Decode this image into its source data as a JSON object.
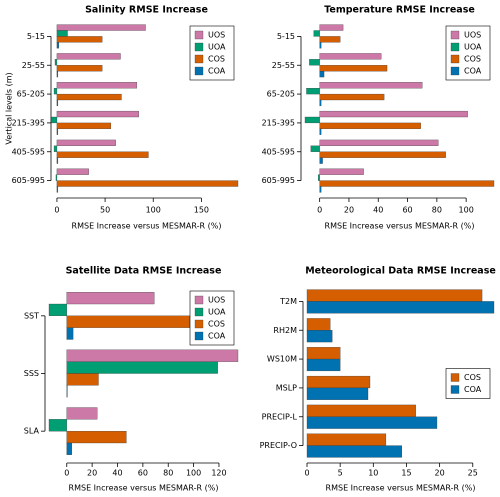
{
  "chart_data": [
    {
      "type": "bar",
      "orientation": "horizontal",
      "title": "Salinity RMSE Increase",
      "xlabel": "RMSE Increase versus MESMAR-R (%)",
      "ylabel": "Vertical levels (m)",
      "categories": [
        "5-15",
        "25-55",
        "65-205",
        "215-395",
        "405-595",
        "605-995"
      ],
      "series": [
        {
          "name": "UOS",
          "color": "#cc79a7",
          "values": [
            92,
            66,
            83,
            85,
            61,
            33
          ]
        },
        {
          "name": "UOA",
          "color": "#009e73",
          "values": [
            11,
            -2,
            -3,
            -6,
            -3,
            -1
          ]
        },
        {
          "name": "COS",
          "color": "#d55e00",
          "values": [
            47,
            47,
            67,
            56,
            95,
            188
          ]
        },
        {
          "name": "COA",
          "color": "#0072b2",
          "values": [
            2,
            1,
            1,
            1,
            1,
            1
          ]
        }
      ],
      "xlim": [
        -2,
        188
      ],
      "xticks": [
        0,
        50,
        100,
        150
      ],
      "legend": "upper right"
    },
    {
      "type": "bar",
      "orientation": "horizontal",
      "title": "Temperature RMSE Increase",
      "xlabel": "RMSE Increase versus MESMAR-R (%)",
      "categories": [
        "5-15",
        "25-55",
        "65-205",
        "215-395",
        "405-595",
        "605-995"
      ],
      "series": [
        {
          "name": "UOS",
          "color": "#cc79a7",
          "values": [
            16,
            42,
            70,
            101,
            81,
            30
          ]
        },
        {
          "name": "UOA",
          "color": "#009e73",
          "values": [
            -4,
            -7,
            -9,
            -10,
            -6,
            -1
          ]
        },
        {
          "name": "COS",
          "color": "#d55e00",
          "values": [
            14,
            46,
            44,
            69,
            86,
            119
          ]
        },
        {
          "name": "COA",
          "color": "#0072b2",
          "values": [
            1,
            3,
            1,
            1,
            2,
            1
          ]
        }
      ],
      "xlim": [
        -10,
        119
      ],
      "xticks": [
        0,
        20,
        40,
        60,
        80,
        100
      ],
      "legend": "upper right"
    },
    {
      "type": "bar",
      "orientation": "horizontal",
      "title": "Satellite Data RMSE Increase",
      "xlabel": "RMSE Increase versus MESMAR-R (%)",
      "categories": [
        "SST",
        "SSS",
        "SLA"
      ],
      "series": [
        {
          "name": "UOS",
          "color": "#cc79a7",
          "values": [
            69,
            135,
            24
          ]
        },
        {
          "name": "UOA",
          "color": "#009e73",
          "values": [
            -14,
            119,
            -14
          ]
        },
        {
          "name": "COS",
          "color": "#d55e00",
          "values": [
            97,
            25,
            47
          ]
        },
        {
          "name": "COA",
          "color": "#0072b2",
          "values": [
            5,
            0.5,
            4
          ]
        }
      ],
      "xlim": [
        -14,
        135
      ],
      "xticks": [
        0,
        20,
        40,
        60,
        80,
        100,
        120
      ],
      "legend": "upper right"
    },
    {
      "type": "bar",
      "orientation": "horizontal",
      "title": "Meteorological Data RMSE Increase",
      "xlabel": "RMSE Increase versus MESMAR-R (%)",
      "categories": [
        "T2M",
        "RH2M",
        "WS10M",
        "MSLP",
        "PRECIP-L",
        "PRECIP-O"
      ],
      "series": [
        {
          "name": "COS",
          "color": "#d55e00",
          "values": [
            26.4,
            3.5,
            5,
            9.5,
            16.4,
            11.9
          ]
        },
        {
          "name": "COA",
          "color": "#0072b2",
          "values": [
            28.2,
            3.8,
            5,
            9.2,
            19.6,
            14.3
          ]
        }
      ],
      "xlim": [
        0,
        28.2
      ],
      "xticks": [
        0,
        5,
        10,
        15,
        20,
        25
      ],
      "legend": "center right"
    }
  ]
}
